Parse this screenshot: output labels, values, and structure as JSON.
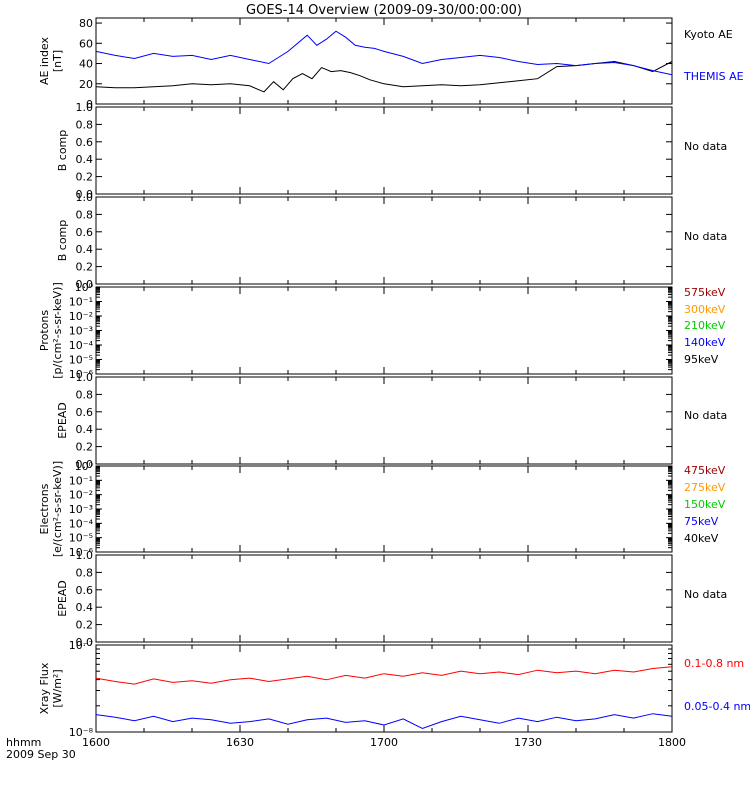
{
  "title": "GOES-14 Overview (2009-09-30/00:00:00)",
  "footer": {
    "time_label": "hhmm",
    "date_label": "2009 Sep 30"
  },
  "x_axis": {
    "range": [
      0,
      120
    ],
    "tick_positions": [
      0,
      30,
      60,
      90,
      120
    ],
    "tick_labels": [
      "1600",
      "1630",
      "1700",
      "1730",
      "1800"
    ]
  },
  "panels": [
    {
      "id": "ae",
      "ylabel": [
        "AE index",
        "[nT]"
      ],
      "ylim": [
        0,
        85
      ],
      "ticks": [
        "0",
        "20",
        "40",
        "60",
        "80"
      ],
      "tick_values": [
        0,
        20,
        40,
        60,
        80
      ],
      "log": false,
      "legend": [
        {
          "text": "Kyoto AE",
          "color": "#000000"
        },
        {
          "text": "THEMIS AE",
          "color": "#0000ff"
        }
      ]
    },
    {
      "id": "bcomp1",
      "ylabel": [
        "B comp"
      ],
      "ylim": [
        0,
        1
      ],
      "ticks": [
        "0.0",
        "0.2",
        "0.4",
        "0.6",
        "0.8",
        "1.0"
      ],
      "tick_values": [
        0,
        0.2,
        0.4,
        0.6,
        0.8,
        1.0
      ],
      "log": false,
      "legend": [
        {
          "text": "No data",
          "color": "#000000"
        }
      ]
    },
    {
      "id": "bcomp2",
      "ylabel": [
        "B comp"
      ],
      "ylim": [
        0,
        1
      ],
      "ticks": [
        "0.0",
        "0.2",
        "0.4",
        "0.6",
        "0.8",
        "1.0"
      ],
      "tick_values": [
        0,
        0.2,
        0.4,
        0.6,
        0.8,
        1.0
      ],
      "log": false,
      "legend": [
        {
          "text": "No data",
          "color": "#000000"
        }
      ]
    },
    {
      "id": "protons",
      "ylabel": [
        "Protons",
        "[p/(cm²-s-sr-keV)]"
      ],
      "ylim": [
        -6,
        0
      ],
      "ticks": [
        "10⁻⁶",
        "10⁻⁵",
        "10⁻⁴",
        "10⁻³",
        "10⁻²",
        "10⁻¹",
        "10⁰"
      ],
      "tick_values": [
        -6,
        -5,
        -4,
        -3,
        -2,
        -1,
        0
      ],
      "log": true,
      "legend": [
        {
          "text": "575keV",
          "color": "#990000"
        },
        {
          "text": "300keV",
          "color": "#ff9900"
        },
        {
          "text": "210keV",
          "color": "#00cc00"
        },
        {
          "text": "140keV",
          "color": "#0000ff"
        },
        {
          "text": "95keV",
          "color": "#000000"
        }
      ]
    },
    {
      "id": "epead1",
      "ylabel": [
        "EPEAD"
      ],
      "ylim": [
        0,
        1
      ],
      "ticks": [
        "0.0",
        "0.2",
        "0.4",
        "0.6",
        "0.8",
        "1.0"
      ],
      "tick_values": [
        0,
        0.2,
        0.4,
        0.6,
        0.8,
        1.0
      ],
      "log": false,
      "legend": [
        {
          "text": "No data",
          "color": "#000000"
        }
      ]
    },
    {
      "id": "electrons",
      "ylabel": [
        "Electrons",
        "[e/(cm²-s-sr-keV)]"
      ],
      "ylim": [
        -6,
        0
      ],
      "ticks": [
        "10⁻⁶",
        "10⁻⁵",
        "10⁻⁴",
        "10⁻³",
        "10⁻²",
        "10⁻¹",
        "10⁰"
      ],
      "tick_values": [
        -6,
        -5,
        -4,
        -3,
        -2,
        -1,
        0
      ],
      "log": true,
      "legend": [
        {
          "text": "475keV",
          "color": "#990000"
        },
        {
          "text": "275keV",
          "color": "#ff9900"
        },
        {
          "text": "150keV",
          "color": "#00cc00"
        },
        {
          "text": "75keV",
          "color": "#0000ff"
        },
        {
          "text": "40keV",
          "color": "#000000"
        }
      ]
    },
    {
      "id": "epead2",
      "ylabel": [
        "EPEAD"
      ],
      "ylim": [
        0,
        1
      ],
      "ticks": [
        "0.0",
        "0.2",
        "0.4",
        "0.6",
        "0.8",
        "1.0"
      ],
      "tick_values": [
        0,
        0.2,
        0.4,
        0.6,
        0.8,
        1.0
      ],
      "log": false,
      "legend": [
        {
          "text": "No data",
          "color": "#000000"
        }
      ]
    },
    {
      "id": "xray",
      "ylabel": [
        "Xray Flux",
        "[W/m²]"
      ],
      "ylim": [
        -8,
        -7
      ],
      "ticks": [
        "10⁻⁸",
        "10⁻⁷"
      ],
      "tick_values": [
        -8,
        -7
      ],
      "log": true,
      "legend": [
        {
          "text": "0.1-0.8 nm",
          "color": "#ff0000"
        },
        {
          "text": "0.05-0.4 nm",
          "color": "#0000ff"
        }
      ]
    }
  ],
  "chart_data": [
    {
      "type": "line",
      "panel": "ae",
      "x_unit": "minutes after 16:00 UT",
      "ylabel": "AE index [nT]",
      "ylim": [
        0,
        85
      ],
      "series": [
        {
          "name": "Kyoto AE",
          "color": "#000000",
          "x": [
            0,
            4,
            8,
            12,
            16,
            20,
            24,
            28,
            32,
            35,
            37,
            39,
            41,
            43,
            45,
            47,
            49,
            51,
            53,
            55,
            57,
            60,
            64,
            68,
            72,
            76,
            80,
            84,
            88,
            92,
            96,
            100,
            104,
            108,
            112,
            116,
            120
          ],
          "y": [
            17,
            16,
            16,
            17,
            18,
            20,
            19,
            20,
            18,
            12,
            22,
            14,
            25,
            30,
            25,
            36,
            32,
            33,
            31,
            28,
            24,
            20,
            17,
            18,
            19,
            18,
            19,
            21,
            23,
            25,
            37,
            38,
            40,
            42,
            38,
            32,
            42
          ]
        },
        {
          "name": "THEMIS AE",
          "color": "#0000ff",
          "x": [
            0,
            4,
            8,
            12,
            16,
            20,
            24,
            28,
            32,
            36,
            40,
            44,
            46,
            48,
            50,
            52,
            54,
            56,
            58,
            60,
            64,
            68,
            72,
            76,
            80,
            84,
            88,
            92,
            96,
            100,
            104,
            108,
            112,
            116,
            120
          ],
          "y": [
            52,
            48,
            45,
            50,
            47,
            48,
            44,
            48,
            44,
            40,
            52,
            68,
            58,
            64,
            72,
            66,
            58,
            56,
            55,
            52,
            47,
            40,
            44,
            46,
            48,
            46,
            42,
            39,
            40,
            38,
            40,
            41,
            38,
            33,
            29
          ]
        }
      ]
    },
    {
      "type": "line",
      "panel": "bcomp1",
      "ylabel": "B comp",
      "ylim": [
        0,
        1
      ],
      "series": []
    },
    {
      "type": "line",
      "panel": "bcomp2",
      "ylabel": "B comp",
      "ylim": [
        0,
        1
      ],
      "series": []
    },
    {
      "type": "line",
      "panel": "protons",
      "ylabel": "Protons [p/(cm²-s-sr-keV)]",
      "ylim": [
        -6,
        0
      ],
      "series": []
    },
    {
      "type": "line",
      "panel": "epead1",
      "ylabel": "EPEAD",
      "ylim": [
        0,
        1
      ],
      "series": []
    },
    {
      "type": "line",
      "panel": "electrons",
      "ylabel": "Electrons [e/(cm²-s-sr-keV)]",
      "ylim": [
        -6,
        0
      ],
      "series": []
    },
    {
      "type": "line",
      "panel": "epead2",
      "ylabel": "EPEAD",
      "ylim": [
        0,
        1
      ],
      "series": []
    },
    {
      "type": "line",
      "panel": "xray",
      "x_unit": "minutes after 16:00 UT",
      "ylabel": "Xray Flux [W/m²]",
      "ylim": [
        -8,
        -7
      ],
      "y_scale": "log10",
      "series": [
        {
          "name": "0.1-0.8 nm",
          "color": "#ff0000",
          "x": [
            0,
            4,
            8,
            12,
            16,
            20,
            24,
            28,
            32,
            36,
            40,
            44,
            48,
            52,
            56,
            60,
            64,
            68,
            72,
            76,
            80,
            84,
            88,
            92,
            96,
            100,
            104,
            108,
            112,
            116,
            120
          ],
          "y": [
            -7.38,
            -7.42,
            -7.45,
            -7.39,
            -7.43,
            -7.41,
            -7.44,
            -7.4,
            -7.38,
            -7.42,
            -7.39,
            -7.36,
            -7.4,
            -7.35,
            -7.38,
            -7.33,
            -7.36,
            -7.32,
            -7.35,
            -7.3,
            -7.33,
            -7.31,
            -7.34,
            -7.29,
            -7.32,
            -7.3,
            -7.33,
            -7.29,
            -7.31,
            -7.27,
            -7.25
          ]
        },
        {
          "name": "0.05-0.4 nm",
          "color": "#0000ff",
          "x": [
            0,
            4,
            8,
            12,
            16,
            20,
            24,
            28,
            32,
            36,
            40,
            44,
            48,
            52,
            56,
            60,
            64,
            68,
            72,
            76,
            80,
            84,
            88,
            92,
            96,
            100,
            104,
            108,
            112,
            116,
            120
          ],
          "y": [
            -7.8,
            -7.83,
            -7.87,
            -7.82,
            -7.88,
            -7.84,
            -7.86,
            -7.9,
            -7.88,
            -7.85,
            -7.91,
            -7.86,
            -7.84,
            -7.89,
            -7.87,
            -7.92,
            -7.85,
            -7.96,
            -7.88,
            -7.82,
            -7.86,
            -7.9,
            -7.84,
            -7.88,
            -7.83,
            -7.87,
            -7.85,
            -7.8,
            -7.84,
            -7.79,
            -7.82
          ]
        }
      ]
    }
  ]
}
